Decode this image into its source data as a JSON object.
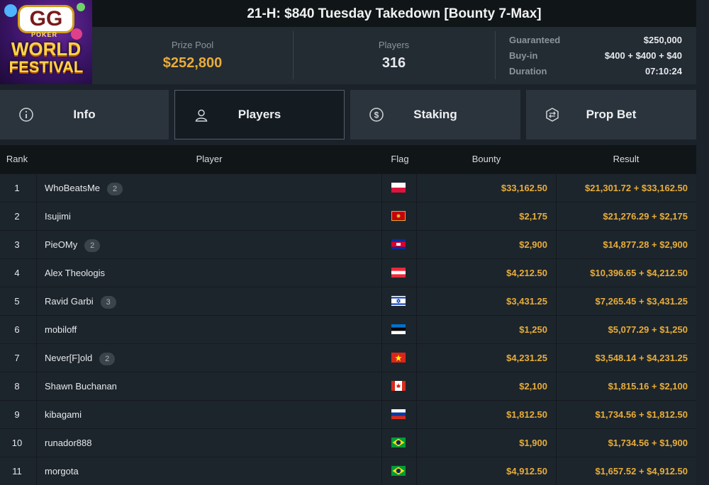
{
  "logo": {
    "text1": "GG",
    "text2": "POKER",
    "text3": "WORLD",
    "text4": "FESTIVAL"
  },
  "title": "21-H: $840 Tuesday Takedown [Bounty 7-Max]",
  "stats": {
    "prize_pool_label": "Prize Pool",
    "prize_pool": "$252,800",
    "players_label": "Players",
    "players": "316",
    "guaranteed_label": "Guaranteed",
    "guaranteed": "$250,000",
    "buyin_label": "Buy-in",
    "buyin": "$400 + $400 + $40",
    "duration_label": "Duration",
    "duration": "07:10:24"
  },
  "tabs": [
    {
      "label": "Info",
      "icon": "info-icon"
    },
    {
      "label": "Players",
      "icon": "user-icon"
    },
    {
      "label": "Staking",
      "icon": "dollar-coin-icon"
    },
    {
      "label": "Prop Bet",
      "icon": "prop-bet-icon"
    }
  ],
  "table": {
    "headers": {
      "rank": "Rank",
      "player": "Player",
      "flag": "Flag",
      "bounty": "Bounty",
      "result": "Result"
    },
    "rows": [
      {
        "rank": "1",
        "player": "WhoBeatsMe",
        "badge": "2",
        "flag": "poland",
        "bounty": "$33,162.50",
        "result": "$21,301.72 + $33,162.50"
      },
      {
        "rank": "2",
        "player": "Isujimi",
        "badge": "",
        "flag": "montenegro",
        "bounty": "$2,175",
        "result": "$21,276.29 + $2,175"
      },
      {
        "rank": "3",
        "player": "PieOMy",
        "badge": "2",
        "flag": "cambodia",
        "bounty": "$2,900",
        "result": "$14,877.28 + $2,900"
      },
      {
        "rank": "4",
        "player": "Alex Theologis",
        "badge": "",
        "flag": "austria",
        "bounty": "$4,212.50",
        "result": "$10,396.65 + $4,212.50"
      },
      {
        "rank": "5",
        "player": "Ravid Garbi",
        "badge": "3",
        "flag": "israel",
        "bounty": "$3,431.25",
        "result": "$7,265.45 + $3,431.25"
      },
      {
        "rank": "6",
        "player": "mobiloff",
        "badge": "",
        "flag": "estonia",
        "bounty": "$1,250",
        "result": "$5,077.29 + $1,250"
      },
      {
        "rank": "7",
        "player": "Never[F]old",
        "badge": "2",
        "flag": "vietnam",
        "bounty": "$4,231.25",
        "result": "$3,548.14 + $4,231.25"
      },
      {
        "rank": "8",
        "player": "Shawn Buchanan",
        "badge": "",
        "flag": "canada",
        "bounty": "$2,100",
        "result": "$1,815.16 + $2,100"
      },
      {
        "rank": "9",
        "player": "kibagami",
        "badge": "",
        "flag": "russia",
        "bounty": "$1,812.50",
        "result": "$1,734.56 + $1,812.50"
      },
      {
        "rank": "10",
        "player": "runador888",
        "badge": "",
        "flag": "brazil",
        "bounty": "$1,900",
        "result": "$1,734.56 + $1,900"
      },
      {
        "rank": "11",
        "player": "morgota",
        "badge": "",
        "flag": "brazil",
        "bounty": "$4,912.50",
        "result": "$1,657.52 + $4,912.50"
      }
    ]
  },
  "colors": {
    "accent": "#e8ad3a",
    "bg": "#1b2229",
    "row": "#1d252c",
    "header": "#101518",
    "tab": "#2b343c",
    "tab_active": "#141b21"
  }
}
